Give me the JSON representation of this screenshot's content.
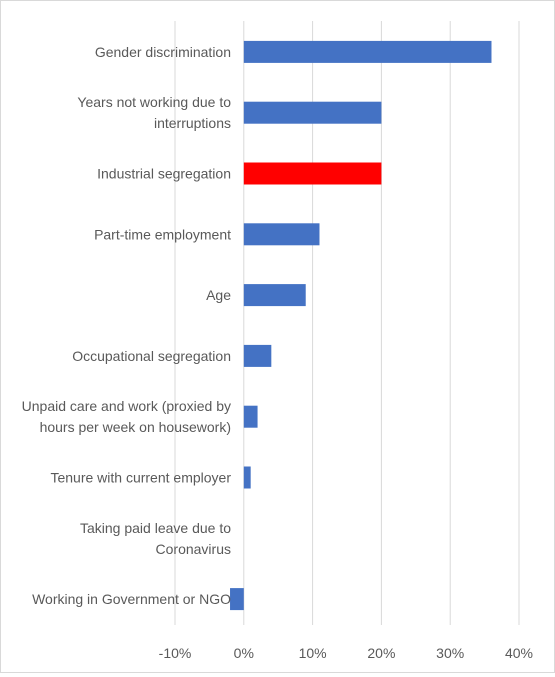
{
  "chart_data": {
    "type": "bar",
    "orientation": "horizontal",
    "title": "",
    "xlabel": "",
    "ylabel": "",
    "xlim": [
      -10,
      40
    ],
    "ticks": [
      -10,
      0,
      10,
      20,
      30,
      40
    ],
    "tick_labels": [
      "-10%",
      "0%",
      "10%",
      "20%",
      "30%",
      "40%"
    ],
    "grid": true,
    "legend": "none",
    "categories": [
      [
        "Gender discrimination"
      ],
      [
        "Years not working due to",
        "interruptions"
      ],
      [
        "Industrial segregation"
      ],
      [
        "Part-time employment"
      ],
      [
        "Age"
      ],
      [
        "Occupational segregation"
      ],
      [
        "Unpaid care and work (proxied by",
        "hours per week on housework)"
      ],
      [
        "Tenure with current employer"
      ],
      [
        "Taking paid leave due to",
        "Coronavirus"
      ],
      [
        "Working in Government or NGO"
      ]
    ],
    "values": [
      36,
      20,
      20,
      11,
      9,
      4,
      2,
      1,
      0,
      -2
    ],
    "colors": [
      "#4472c4",
      "#4472c4",
      "#ff0000",
      "#4472c4",
      "#4472c4",
      "#4472c4",
      "#4472c4",
      "#4472c4",
      "#4472c4",
      "#4472c4"
    ],
    "bar_color": "#4472c4",
    "highlight_color": "#ff0000",
    "grid_color": "#d9d9d9"
  }
}
